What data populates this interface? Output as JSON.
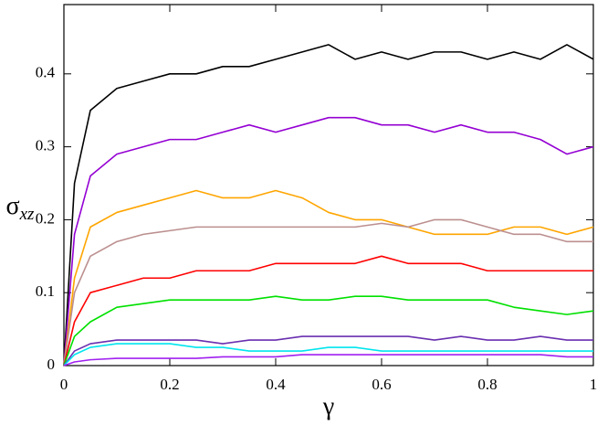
{
  "chart_data": {
    "type": "line",
    "xlabel": "γ",
    "ylabel": {
      "symbol": "σ",
      "subscript": "xz"
    },
    "x": [
      0,
      0.02,
      0.05,
      0.1,
      0.15,
      0.2,
      0.25,
      0.3,
      0.35,
      0.4,
      0.45,
      0.5,
      0.55,
      0.6,
      0.65,
      0.7,
      0.75,
      0.8,
      0.85,
      0.9,
      0.95,
      1.0
    ],
    "xlim": [
      0,
      1
    ],
    "xticks": [
      0,
      0.2,
      0.4,
      0.6,
      0.8,
      1
    ],
    "ylim": [
      0,
      0.495
    ],
    "yticks": [
      0,
      0.1,
      0.2,
      0.3,
      0.4
    ],
    "series": [
      {
        "color": "#000000",
        "values": [
          0,
          0.25,
          0.35,
          0.38,
          0.39,
          0.4,
          0.4,
          0.41,
          0.41,
          0.42,
          0.43,
          0.44,
          0.42,
          0.43,
          0.42,
          0.43,
          0.43,
          0.42,
          0.43,
          0.42,
          0.44,
          0.42
        ]
      },
      {
        "color": "#9400d3",
        "values": [
          0,
          0.18,
          0.26,
          0.29,
          0.3,
          0.31,
          0.31,
          0.32,
          0.33,
          0.32,
          0.33,
          0.34,
          0.34,
          0.33,
          0.33,
          0.32,
          0.33,
          0.32,
          0.32,
          0.31,
          0.29,
          0.3
        ]
      },
      {
        "color": "#ffa500",
        "values": [
          0,
          0.12,
          0.19,
          0.21,
          0.22,
          0.23,
          0.24,
          0.23,
          0.23,
          0.24,
          0.23,
          0.21,
          0.2,
          0.2,
          0.19,
          0.18,
          0.18,
          0.18,
          0.19,
          0.19,
          0.18,
          0.19
        ]
      },
      {
        "color": "#bc8f8f",
        "values": [
          0,
          0.1,
          0.15,
          0.17,
          0.18,
          0.185,
          0.19,
          0.19,
          0.19,
          0.19,
          0.19,
          0.19,
          0.19,
          0.195,
          0.19,
          0.2,
          0.2,
          0.19,
          0.18,
          0.18,
          0.17,
          0.17
        ]
      },
      {
        "color": "#ff0000",
        "values": [
          0,
          0.06,
          0.1,
          0.11,
          0.12,
          0.12,
          0.13,
          0.13,
          0.13,
          0.14,
          0.14,
          0.14,
          0.14,
          0.15,
          0.14,
          0.14,
          0.14,
          0.13,
          0.13,
          0.13,
          0.13,
          0.13
        ]
      },
      {
        "color": "#00e000",
        "values": [
          0,
          0.04,
          0.06,
          0.08,
          0.085,
          0.09,
          0.09,
          0.09,
          0.09,
          0.095,
          0.09,
          0.09,
          0.095,
          0.095,
          0.09,
          0.09,
          0.09,
          0.09,
          0.08,
          0.075,
          0.07,
          0.075
        ]
      },
      {
        "color": "#6a2fb0",
        "values": [
          0,
          0.02,
          0.03,
          0.035,
          0.035,
          0.035,
          0.035,
          0.03,
          0.035,
          0.035,
          0.04,
          0.04,
          0.04,
          0.04,
          0.04,
          0.035,
          0.04,
          0.035,
          0.035,
          0.04,
          0.035,
          0.035
        ]
      },
      {
        "color": "#00e5ee",
        "values": [
          0,
          0.015,
          0.025,
          0.03,
          0.03,
          0.03,
          0.025,
          0.025,
          0.02,
          0.02,
          0.02,
          0.025,
          0.025,
          0.02,
          0.02,
          0.02,
          0.02,
          0.02,
          0.02,
          0.02,
          0.02,
          0.02
        ]
      },
      {
        "color": "#a020f0",
        "values": [
          0,
          0.005,
          0.008,
          0.01,
          0.01,
          0.01,
          0.01,
          0.012,
          0.012,
          0.012,
          0.015,
          0.015,
          0.015,
          0.015,
          0.015,
          0.015,
          0.015,
          0.015,
          0.015,
          0.015,
          0.012,
          0.012
        ]
      }
    ]
  }
}
